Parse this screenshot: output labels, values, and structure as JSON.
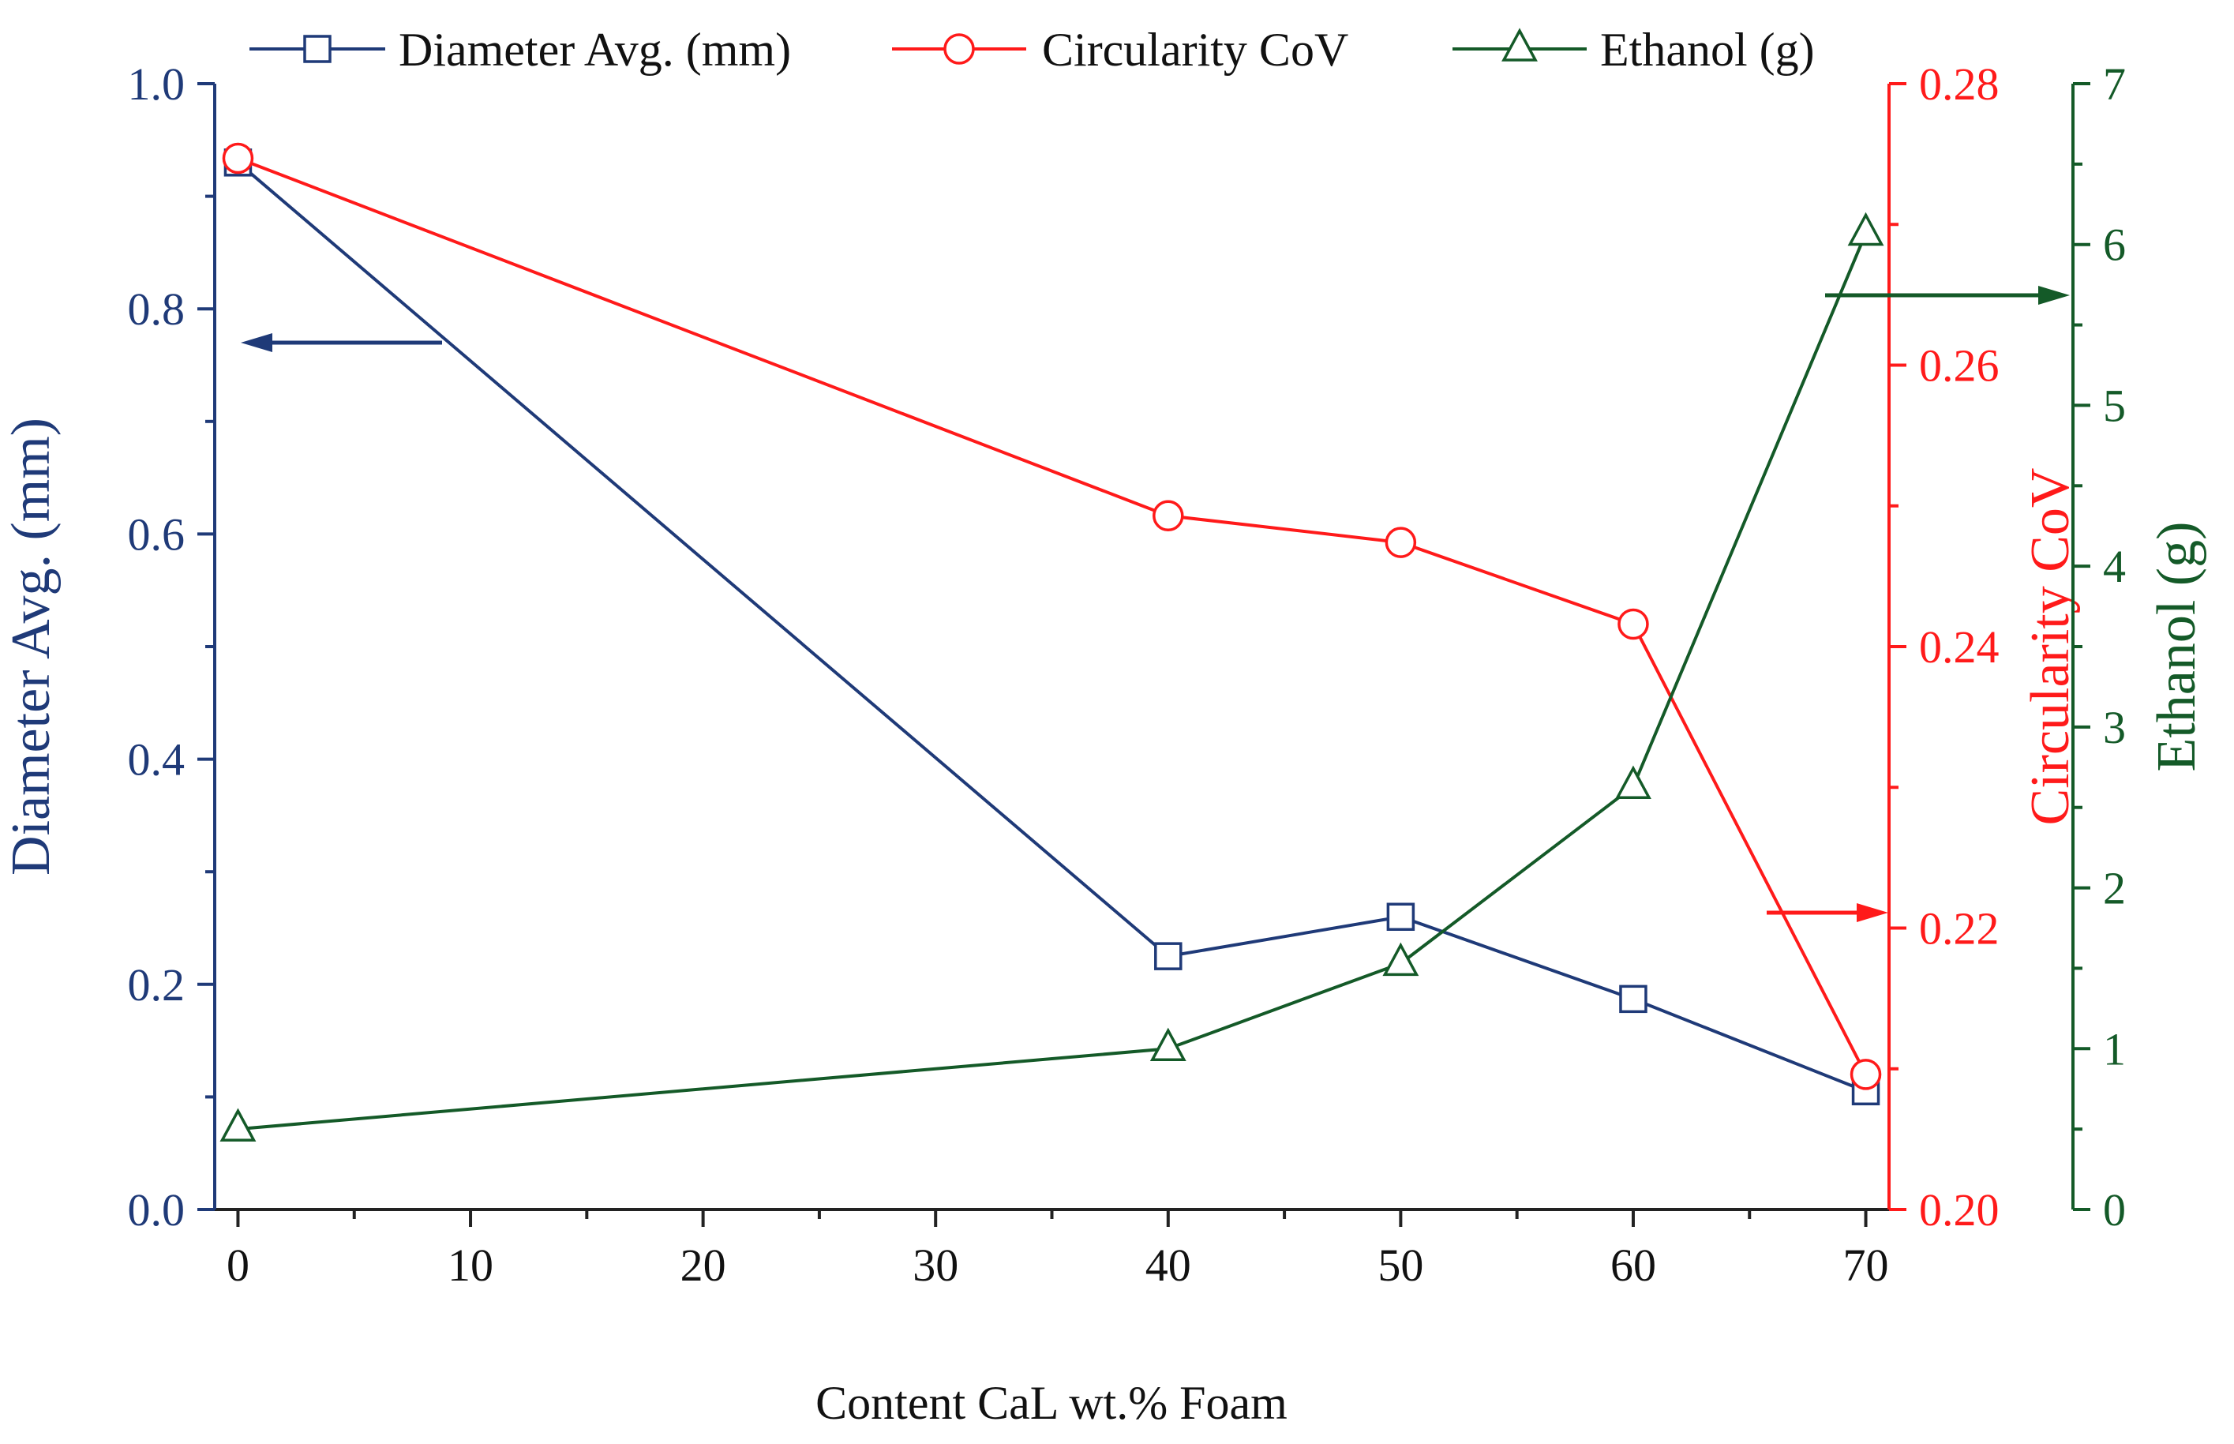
{
  "chart_data": {
    "type": "line",
    "xlabel": "Content CaL wt.% Foam",
    "x": [
      0,
      40,
      50,
      60,
      70
    ],
    "xlim": [
      -1,
      71
    ],
    "xticks": [
      0,
      10,
      20,
      30,
      40,
      50,
      60,
      70
    ],
    "grid": false,
    "legend_position": "top",
    "axes": [
      {
        "id": "diameter",
        "side": "left",
        "label": "Diameter Avg. (mm)",
        "ylim": [
          0.0,
          1.0
        ],
        "ticks": [
          0.0,
          0.2,
          0.4,
          0.6,
          0.8,
          1.0
        ],
        "tick_labels": [
          "0.0",
          "0.2",
          "0.4",
          "0.6",
          "0.8",
          "1.0"
        ],
        "color": "#1f3a78"
      },
      {
        "id": "circularity",
        "side": "right",
        "label": "Circularity CoV",
        "ylim": [
          0.2,
          0.28
        ],
        "ticks": [
          0.2,
          0.22,
          0.24,
          0.26,
          0.28
        ],
        "tick_labels": [
          "0.20",
          "0.22",
          "0.24",
          "0.26",
          "0.28"
        ],
        "color": "#ff1a1a"
      },
      {
        "id": "ethanol",
        "side": "right-outer",
        "label": "Ethanol (g)",
        "ylim": [
          0,
          7
        ],
        "ticks": [
          0,
          1,
          2,
          3,
          4,
          5,
          6,
          7
        ],
        "tick_labels": [
          "0",
          "1",
          "2",
          "3",
          "4",
          "5",
          "6",
          "7"
        ],
        "color": "#145a28"
      }
    ],
    "series": [
      {
        "name": "Diameter Avg. (mm)",
        "axis": "diameter",
        "marker": "square",
        "color": "#1f3a78",
        "values": [
          0.93,
          0.225,
          0.26,
          0.187,
          0.105
        ]
      },
      {
        "name": "Circularity CoV",
        "axis": "circularity",
        "marker": "circle",
        "color": "#ff1a1a",
        "values": [
          0.2747,
          0.2493,
          0.2474,
          0.2416,
          0.2096
        ]
      },
      {
        "name": "Ethanol (g)",
        "axis": "ethanol",
        "marker": "triangle",
        "color": "#145a28",
        "values": [
          0.5,
          1.0,
          1.53,
          2.63,
          6.07
        ]
      }
    ],
    "annotations": [
      {
        "type": "arrow",
        "series": "Diameter Avg. (mm)",
        "direction": "left"
      },
      {
        "type": "arrow",
        "series": "Circularity CoV",
        "direction": "right"
      },
      {
        "type": "arrow",
        "series": "Ethanol (g)",
        "direction": "right"
      }
    ]
  }
}
